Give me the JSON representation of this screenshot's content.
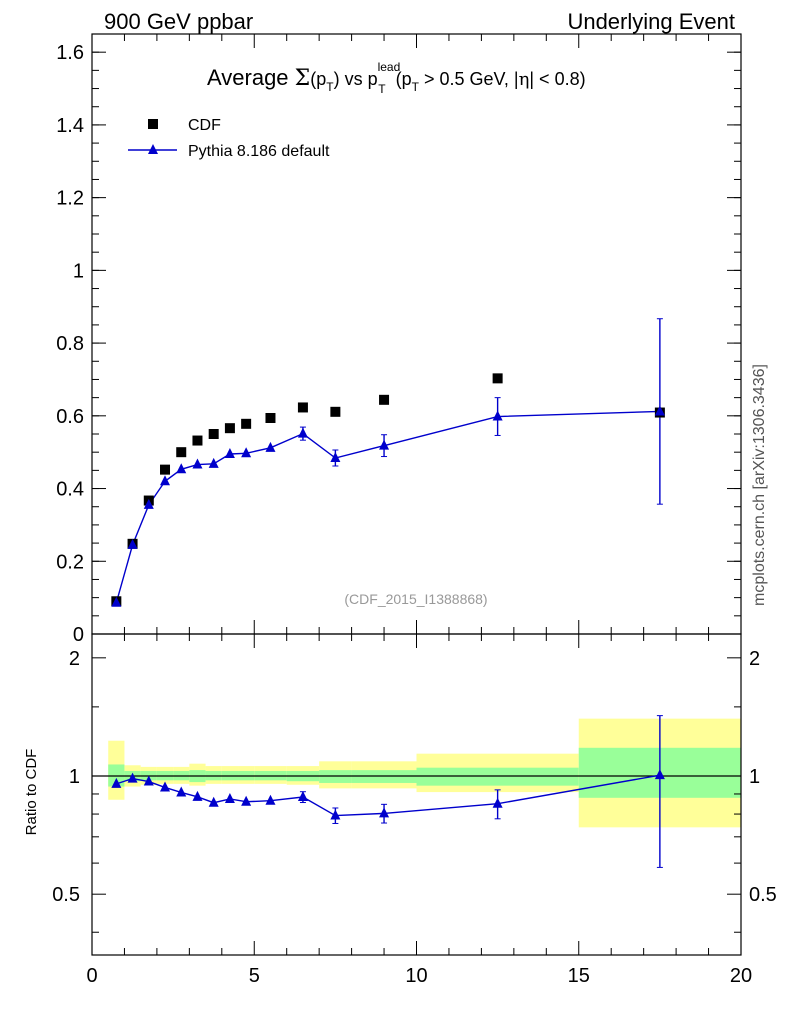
{
  "header": {
    "left": "900 GeV ppbar",
    "right": "Underlying Event"
  },
  "side_label": "mcplots.cern.ch [arXiv:1306.3436]",
  "analysis_id": "(CDF_2015_I1388868)",
  "colors": {
    "data": "#000000",
    "mc": "#0000cc",
    "band_inner": "#99ff99",
    "band_outer": "#ffff99"
  },
  "chart_data": [
    {
      "type": "scatter",
      "title": "Average Σ(p_T) vs p_T^lead (p_T > 0.5 GeV, |η| < 0.8)",
      "title_parts": {
        "prefix": "Average ",
        "sigma": "Σ",
        "open": "(p",
        "sub_T": "T",
        "close": ") vs p",
        "sup_lead": "lead",
        "paren": "(p",
        "cut": " > 0.5 GeV, |",
        "eta": "η",
        "tail": "| < 0.8)"
      },
      "xlim": [
        0,
        20
      ],
      "ylim": [
        0,
        1.65
      ],
      "yticks": [
        0,
        0.2,
        0.4,
        0.6,
        0.8,
        1,
        1.2,
        1.4,
        1.6
      ],
      "ytick_labels": [
        "0",
        "0.2",
        "0.4",
        "0.6",
        "0.8",
        "1",
        "1.2",
        "1.4",
        "1.6"
      ],
      "legend_position": "top-left",
      "series": [
        {
          "name": "CDF",
          "marker": "square",
          "x": [
            0.75,
            1.25,
            1.75,
            2.25,
            2.75,
            3.25,
            3.75,
            4.25,
            4.75,
            5.5,
            6.5,
            7.5,
            9.0,
            12.5,
            17.5
          ],
          "y": [
            0.09,
            0.248,
            0.367,
            0.452,
            0.5,
            0.532,
            0.55,
            0.566,
            0.578,
            0.594,
            0.623,
            0.611,
            0.644,
            0.703,
            0.609
          ]
        },
        {
          "name": "Pythia 8.186 default",
          "marker": "triangle",
          "x": [
            0.75,
            1.25,
            1.75,
            2.25,
            2.75,
            3.25,
            3.75,
            4.25,
            4.75,
            5.5,
            6.5,
            7.5,
            9.0,
            12.5,
            17.5
          ],
          "y": [
            0.086,
            0.245,
            0.355,
            0.42,
            0.453,
            0.466,
            0.468,
            0.495,
            0.497,
            0.512,
            0.551,
            0.484,
            0.518,
            0.598,
            0.612
          ],
          "err": [
            0.0,
            0.0,
            0.0,
            0.0,
            0.0,
            0.0,
            0.0,
            0.0,
            0.0,
            0.0,
            0.018,
            0.022,
            0.03,
            0.052,
            0.255
          ]
        }
      ]
    },
    {
      "type": "scatter",
      "ylabel": "Ratio to CDF",
      "xlim": [
        0,
        20
      ],
      "ylim": [
        0.35,
        2.3
      ],
      "xticks": [
        0,
        5,
        10,
        15,
        20
      ],
      "xtick_labels": [
        "0",
        "5",
        "10",
        "15",
        "20"
      ],
      "yticks": [
        0.5,
        1,
        2
      ],
      "ytick_labels": [
        "0.5",
        "1",
        "2"
      ],
      "bands": {
        "edges": [
          0.5,
          1.0,
          1.5,
          2.0,
          2.5,
          3.0,
          3.5,
          4.0,
          4.5,
          5.0,
          6.0,
          7.0,
          8.0,
          10.0,
          15.0,
          20.0
        ],
        "inner_low": [
          0.94,
          0.97,
          0.975,
          0.975,
          0.975,
          0.965,
          0.975,
          0.975,
          0.975,
          0.975,
          0.97,
          0.96,
          0.96,
          0.945,
          0.88
        ],
        "inner_high": [
          1.07,
          1.03,
          1.03,
          1.03,
          1.03,
          1.035,
          1.03,
          1.03,
          1.03,
          1.03,
          1.03,
          1.035,
          1.035,
          1.05,
          1.18
        ],
        "outer_low": [
          0.87,
          0.94,
          0.95,
          0.955,
          0.955,
          0.945,
          0.955,
          0.955,
          0.955,
          0.955,
          0.95,
          0.93,
          0.93,
          0.91,
          0.74
        ],
        "outer_high": [
          1.23,
          1.065,
          1.055,
          1.055,
          1.055,
          1.075,
          1.06,
          1.06,
          1.06,
          1.06,
          1.06,
          1.09,
          1.09,
          1.14,
          1.4
        ]
      },
      "series": [
        {
          "name": "Pythia 8.186 default",
          "marker": "triangle",
          "x": [
            0.75,
            1.25,
            1.75,
            2.25,
            2.75,
            3.25,
            3.75,
            4.25,
            4.75,
            5.5,
            6.5,
            7.5,
            9.0,
            12.5,
            17.5
          ],
          "y": [
            0.955,
            0.985,
            0.968,
            0.935,
            0.908,
            0.885,
            0.855,
            0.874,
            0.86,
            0.865,
            0.884,
            0.793,
            0.803,
            0.85,
            1.005
          ],
          "err": [
            0.0,
            0.0,
            0.0,
            0.0,
            0.0,
            0.0,
            0.0,
            0.0,
            0.0,
            0.0,
            0.028,
            0.036,
            0.044,
            0.072,
            0.42
          ]
        }
      ]
    }
  ]
}
